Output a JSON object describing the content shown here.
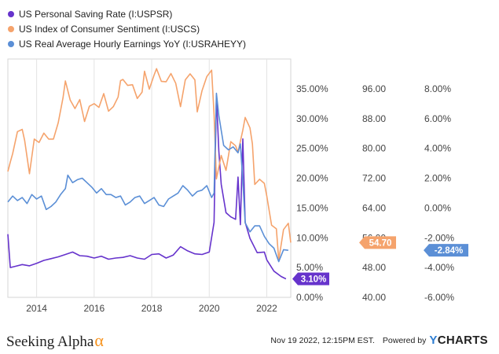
{
  "legend": [
    {
      "label": "US Personal Saving Rate (I:USPSR)",
      "color": "#6633cc"
    },
    {
      "label": "US Index of Consumer Sentiment (I:USCS)",
      "color": "#f5a36c"
    },
    {
      "label": "US Real Average Hourly Earnings YoY (I:USRAHEYY)",
      "color": "#5b8fd6"
    }
  ],
  "footer": {
    "brand": "Seeking Alpha",
    "brand_symbol": "α",
    "timestamp": "Nov 19 2022, 12:15PM EST.",
    "powered_by": "Powered by",
    "ycharts_y": "Y",
    "ycharts_rest": "CHARTS"
  },
  "chart_data": {
    "type": "line",
    "x_ticks": [
      "2014",
      "2016",
      "2018",
      "2020",
      "2022"
    ],
    "xlim": [
      "2013-01",
      "2022-11"
    ],
    "axes": [
      {
        "id": "saving",
        "unit": "%",
        "ylim": [
          0,
          40
        ],
        "tick_labels": [
          "0.00%",
          "5.00%",
          "10.00%",
          "15.00%",
          "20.00%",
          "25.00%",
          "30.00%",
          "35.00%"
        ],
        "tick_values": [
          0,
          5,
          10,
          15,
          20,
          25,
          30,
          35
        ]
      },
      {
        "id": "sentiment",
        "unit": "",
        "ylim": [
          40,
          104
        ],
        "tick_labels": [
          "40.00",
          "48.00",
          "56.00",
          "64.00",
          "72.00",
          "80.00",
          "88.00",
          "96.00"
        ],
        "tick_values": [
          40,
          48,
          56,
          64,
          72,
          80,
          88,
          96
        ]
      },
      {
        "id": "earnings",
        "unit": "%",
        "ylim": [
          -6,
          10
        ],
        "tick_labels": [
          "-6.00%",
          "-4.00%",
          "-2.00%",
          "0.00%",
          "2.00%",
          "4.00%",
          "6.00%",
          "8.00%"
        ],
        "tick_values": [
          -6,
          -4,
          -2,
          0,
          2,
          4,
          6,
          8
        ]
      }
    ],
    "grid": "vertical",
    "series": [
      {
        "name": "US Personal Saving Rate (I:USPSR)",
        "axis": "saving",
        "color": "#6633cc",
        "last_label": "3.10%",
        "x": [
          "2013-01",
          "2013-02",
          "2013-04",
          "2013-07",
          "2013-10",
          "2014-01",
          "2014-04",
          "2014-07",
          "2014-10",
          "2015-01",
          "2015-04",
          "2015-07",
          "2015-10",
          "2016-01",
          "2016-04",
          "2016-07",
          "2016-10",
          "2017-01",
          "2017-04",
          "2017-07",
          "2017-10",
          "2018-01",
          "2018-04",
          "2018-07",
          "2018-10",
          "2019-01",
          "2019-04",
          "2019-07",
          "2019-10",
          "2020-01",
          "2020-03",
          "2020-04",
          "2020-05",
          "2020-06",
          "2020-08",
          "2020-10",
          "2020-12",
          "2021-01",
          "2021-02",
          "2021-03",
          "2021-04",
          "2021-06",
          "2021-09",
          "2021-12",
          "2022-01",
          "2022-04",
          "2022-07",
          "2022-09"
        ],
        "values": [
          10.6,
          5.0,
          5.2,
          5.5,
          5.3,
          5.7,
          6.2,
          6.5,
          6.8,
          7.2,
          7.6,
          7.0,
          6.9,
          6.6,
          6.9,
          6.4,
          6.6,
          6.7,
          7.0,
          6.6,
          6.4,
          7.2,
          7.3,
          6.6,
          7.1,
          8.5,
          7.8,
          7.3,
          7.2,
          7.6,
          12.6,
          33.8,
          24.5,
          19.0,
          14.2,
          13.5,
          13.1,
          20.2,
          12.2,
          26.6,
          12.6,
          9.9,
          7.5,
          7.6,
          6.3,
          4.4,
          3.5,
          3.1
        ]
      },
      {
        "name": "US Index of Consumer Sentiment (I:USCS)",
        "axis": "sentiment",
        "color": "#f5a36c",
        "last_label": "54.70",
        "x": [
          "2013-01",
          "2013-02",
          "2013-03",
          "2013-05",
          "2013-07",
          "2013-08",
          "2013-10",
          "2013-12",
          "2014-02",
          "2014-04",
          "2014-06",
          "2014-08",
          "2014-10",
          "2014-12",
          "2015-01",
          "2015-03",
          "2015-05",
          "2015-07",
          "2015-09",
          "2015-11",
          "2016-01",
          "2016-03",
          "2016-05",
          "2016-07",
          "2016-09",
          "2016-11",
          "2016-12",
          "2017-01",
          "2017-03",
          "2017-05",
          "2017-07",
          "2017-09",
          "2017-10",
          "2017-12",
          "2018-02",
          "2018-03",
          "2018-05",
          "2018-07",
          "2018-09",
          "2018-11",
          "2019-01",
          "2019-03",
          "2019-05",
          "2019-07",
          "2019-08",
          "2019-10",
          "2019-12",
          "2020-02",
          "2020-03",
          "2020-04",
          "2020-06",
          "2020-08",
          "2020-10",
          "2020-12",
          "2021-01",
          "2021-03",
          "2021-04",
          "2021-06",
          "2021-07",
          "2021-08",
          "2021-10",
          "2021-12",
          "2022-01",
          "2022-03",
          "2022-05",
          "2022-06",
          "2022-08",
          "2022-10",
          "2022-11"
        ],
        "values": [
          73.8,
          76.3,
          78.6,
          84.5,
          85.1,
          82.1,
          73.2,
          82.5,
          81.6,
          84.1,
          82.5,
          82.5,
          86.9,
          93.6,
          98.1,
          93.0,
          90.7,
          93.1,
          87.2,
          91.3,
          92.0,
          91.0,
          94.7,
          90.0,
          91.2,
          93.8,
          98.2,
          98.5,
          96.9,
          97.1,
          93.4,
          95.1,
          100.7,
          95.9,
          99.7,
          101.4,
          98.0,
          97.9,
          100.1,
          97.5,
          91.2,
          98.4,
          100.0,
          98.4,
          89.8,
          95.5,
          99.3,
          101.0,
          89.1,
          71.8,
          78.1,
          74.1,
          81.8,
          80.7,
          79.0,
          84.9,
          88.3,
          85.5,
          81.2,
          70.3,
          71.7,
          70.6,
          67.2,
          59.4,
          58.4,
          50.0,
          58.2,
          59.9,
          54.7
        ]
      },
      {
        "name": "US Real Average Hourly Earnings YoY (I:USRAHEYY)",
        "axis": "earnings",
        "color": "#5b8fd6",
        "last_label": "-2.84%",
        "x": [
          "2013-01",
          "2013-03",
          "2013-05",
          "2013-07",
          "2013-09",
          "2013-11",
          "2014-01",
          "2014-03",
          "2014-05",
          "2014-07",
          "2014-09",
          "2014-11",
          "2015-01",
          "2015-02",
          "2015-04",
          "2015-06",
          "2015-08",
          "2015-10",
          "2015-12",
          "2016-02",
          "2016-04",
          "2016-06",
          "2016-08",
          "2016-10",
          "2016-12",
          "2017-02",
          "2017-04",
          "2017-06",
          "2017-08",
          "2017-10",
          "2017-12",
          "2018-02",
          "2018-04",
          "2018-06",
          "2018-08",
          "2018-10",
          "2018-12",
          "2019-02",
          "2019-04",
          "2019-06",
          "2019-08",
          "2019-10",
          "2019-12",
          "2020-02",
          "2020-03",
          "2020-04",
          "2020-05",
          "2020-07",
          "2020-09",
          "2020-11",
          "2021-01",
          "2021-02",
          "2021-03",
          "2021-04",
          "2021-06",
          "2021-08",
          "2021-10",
          "2021-12",
          "2022-02",
          "2022-04",
          "2022-06",
          "2022-08",
          "2022-10"
        ],
        "values": [
          0.4,
          0.8,
          0.5,
          0.7,
          0.3,
          0.9,
          0.6,
          0.8,
          -0.1,
          0.1,
          0.4,
          0.9,
          1.3,
          2.2,
          1.7,
          1.9,
          2.0,
          1.7,
          1.4,
          1.0,
          1.3,
          0.9,
          0.9,
          0.7,
          0.8,
          0.2,
          0.4,
          0.7,
          0.8,
          0.3,
          0.5,
          0.7,
          0.2,
          0.1,
          0.6,
          0.8,
          1.0,
          1.5,
          1.2,
          0.8,
          1.1,
          1.2,
          1.5,
          0.7,
          1.0,
          7.7,
          6.2,
          4.2,
          3.9,
          4.1,
          3.7,
          4.3,
          1.8,
          -1.0,
          -1.6,
          -1.2,
          -1.2,
          -1.9,
          -2.4,
          -2.7,
          -3.6,
          -2.8,
          -2.84
        ]
      }
    ]
  }
}
